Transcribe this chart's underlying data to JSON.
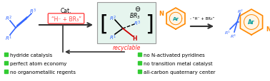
{
  "bg_color": "#ffffff",
  "green_square_color": "#33cc33",
  "legend_items_left": [
    "hydride catalysis",
    "perfect atom economy",
    "no organometallic regents"
  ],
  "legend_items_right": [
    "no N-activated pyridines",
    "no transition metal catalyst",
    "all-carbon quaternary center"
  ],
  "recyclable_text": "recyclable",
  "recyclable_color": "#ff2222",
  "cat_text": "Cat.",
  "catalyst_box_color": "#ff4444",
  "minus_text": "- “H⁻ + BR₃”",
  "intermediate_bg": "#e6f5ee",
  "alkene_color": "#3366ff",
  "product_color": "#3366ff",
  "pyridine_ring_color": "#ff8800",
  "ar_text_color": "#009999",
  "arrow_color": "#333333",
  "red_bond_color": "#cc0000",
  "black_color": "#000000",
  "figsize": [
    3.78,
    1.15
  ],
  "dpi": 100
}
